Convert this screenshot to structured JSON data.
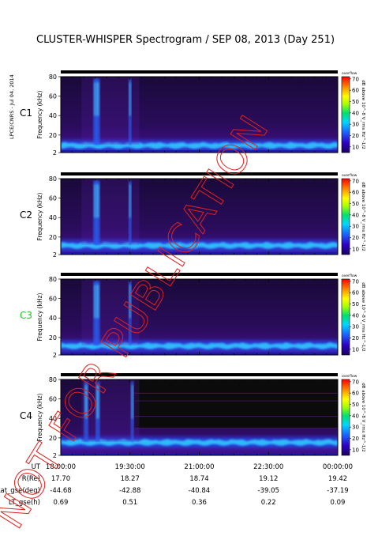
{
  "title": "CLUSTER-WHISPER Spectrogram / SEP 08, 2013 (Day 251)",
  "credit": "LPCE/CNRS - Jul 04, 2014",
  "watermark": "NOT FOR PUBLICATION",
  "colors": {
    "watermark": "#e0201c",
    "spacecraft_label": "#000000",
    "spacecraft_label_c3": "#22c422",
    "noise_background": "#0b0b0b"
  },
  "chart_data": {
    "type": "heatmap",
    "x_tick_labels": [
      "18:00:00",
      "19:30:00",
      "21:00:00",
      "22:30:00",
      "00:00:00"
    ],
    "x_range_hours": [
      18,
      24
    ],
    "y_range_khz": [
      2,
      80
    ],
    "y_tick_labels": [
      "2",
      "20",
      "40",
      "60",
      "80"
    ],
    "ylabel": "Frequency (kHz)",
    "colorbar": {
      "label": "dB above 10^-8 V_rms Hz^-1/2",
      "top_label": "overflow",
      "ticks": [
        "10",
        "20",
        "30",
        "40",
        "50",
        "60",
        "70"
      ],
      "range": [
        5,
        72
      ]
    },
    "panels": [
      {
        "name": "C1",
        "plasma_band_khz": 10,
        "band_level_db": 22,
        "burst_khz_max": 78,
        "spikes_at_hours": [
          18.75,
          18.8,
          19.5
        ],
        "gap": false
      },
      {
        "name": "C2",
        "plasma_band_khz": 12,
        "band_level_db": 28,
        "burst_khz_max": 78,
        "spikes_at_hours": [
          18.75,
          18.8,
          19.5
        ],
        "gap": false
      },
      {
        "name": "C3",
        "plasma_band_khz": 12,
        "band_level_db": 30,
        "burst_khz_max": 78,
        "spikes_at_hours": [
          18.75,
          18.8,
          19.5
        ],
        "gap": false
      },
      {
        "name": "C4",
        "plasma_band_khz": 16,
        "band_level_db": 26,
        "burst_khz_max": 78,
        "spikes_at_hours": [
          18.55,
          18.8,
          19.55
        ],
        "gap": true,
        "gap_after_hours": 19.6
      }
    ],
    "ephemeris": {
      "rows": [
        {
          "label": "UT",
          "values": [
            "18:00:00",
            "19:30:00",
            "21:00:00",
            "22:30:00",
            "00:00:00"
          ]
        },
        {
          "label": "R(Re)",
          "values": [
            "17.70",
            "18.27",
            "18.74",
            "19.12",
            "19.42"
          ]
        },
        {
          "label": "Lat_gse(deg)",
          "values": [
            "-44.68",
            "-42.88",
            "-40.84",
            "-39.05",
            "-37.19"
          ]
        },
        {
          "label": "LT_gse(h)",
          "values": [
            "0.69",
            "0.51",
            "0.36",
            "0.22",
            "0.09"
          ]
        }
      ]
    }
  }
}
